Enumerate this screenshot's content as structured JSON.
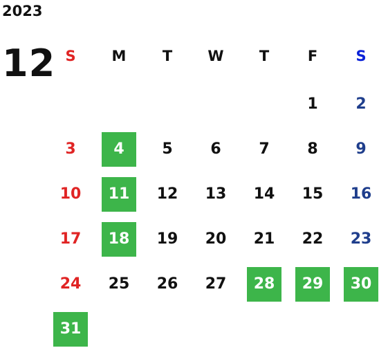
{
  "calendar": {
    "year": "2023",
    "month": "12",
    "weekdays": [
      "S",
      "M",
      "T",
      "W",
      "T",
      "F",
      "S"
    ],
    "weeks": [
      [
        null,
        null,
        null,
        null,
        null,
        {
          "day": 1,
          "highlighted": false
        },
        {
          "day": 2,
          "highlighted": false
        }
      ],
      [
        {
          "day": 3,
          "highlighted": false
        },
        {
          "day": 4,
          "highlighted": true
        },
        {
          "day": 5,
          "highlighted": false
        },
        {
          "day": 6,
          "highlighted": false
        },
        {
          "day": 7,
          "highlighted": false
        },
        {
          "day": 8,
          "highlighted": false
        },
        {
          "day": 9,
          "highlighted": false
        }
      ],
      [
        {
          "day": 10,
          "highlighted": false
        },
        {
          "day": 11,
          "highlighted": true
        },
        {
          "day": 12,
          "highlighted": false
        },
        {
          "day": 13,
          "highlighted": false
        },
        {
          "day": 14,
          "highlighted": false
        },
        {
          "day": 15,
          "highlighted": false
        },
        {
          "day": 16,
          "highlighted": false
        }
      ],
      [
        {
          "day": 17,
          "highlighted": false
        },
        {
          "day": 18,
          "highlighted": true
        },
        {
          "day": 19,
          "highlighted": false
        },
        {
          "day": 20,
          "highlighted": false
        },
        {
          "day": 21,
          "highlighted": false
        },
        {
          "day": 22,
          "highlighted": false
        },
        {
          "day": 23,
          "highlighted": false
        }
      ],
      [
        {
          "day": 24,
          "highlighted": false
        },
        {
          "day": 25,
          "highlighted": false
        },
        {
          "day": 26,
          "highlighted": false
        },
        {
          "day": 27,
          "highlighted": false
        },
        {
          "day": 28,
          "highlighted": true
        },
        {
          "day": 29,
          "highlighted": true
        },
        {
          "day": 30,
          "highlighted": true
        }
      ],
      [
        {
          "day": 31,
          "highlighted": true
        },
        null,
        null,
        null,
        null,
        null,
        null
      ]
    ]
  }
}
